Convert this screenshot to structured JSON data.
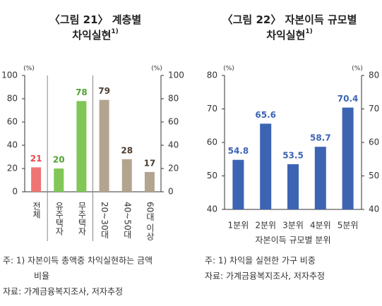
{
  "chart_data": [
    {
      "type": "bar",
      "title": [
        "〈그림 21〉 계층별",
        "차익실현"
      ],
      "title_sup": "1)",
      "categories": [
        "전체",
        "유주택자",
        "무주택자",
        "20~30대",
        "40~50대",
        "60대 이상"
      ],
      "values": [
        21,
        20,
        78,
        79,
        28,
        17
      ],
      "colors": [
        "#f07474",
        "#80c757",
        "#80c757",
        "#b3a48f",
        "#b3a48f",
        "#b3a48f"
      ],
      "label_colors": [
        "#e8474c",
        "#4fa331",
        "#4fa331",
        "#4a3d33",
        "#4a3d33",
        "#4a3d33"
      ],
      "separators_after": [
        0,
        2
      ],
      "ylim": [
        0,
        100
      ],
      "yticks": [
        0,
        20,
        40,
        60,
        80,
        100
      ],
      "y_unit": "(%)",
      "y2lim": [
        0,
        100
      ],
      "y2ticks": [
        0,
        20,
        40,
        60,
        80,
        100
      ],
      "y2_unit": "(%)",
      "notes": [
        "주: 1) 자본이득 총액중 차익실현하는 금액",
        "비율",
        "자료: 가계금융복지조사, 저자추정"
      ]
    },
    {
      "type": "bar",
      "title": [
        "〈그림 22〉 자본이득 규모별",
        "차익실현"
      ],
      "title_sup": "1)",
      "categories": [
        "1분위",
        "2분위",
        "3분위",
        "4분위",
        "5분위"
      ],
      "values": [
        54.8,
        65.6,
        53.5,
        58.7,
        70.4
      ],
      "color": "#3d64b3",
      "label_color": "#3d64b3",
      "xlabel": "자본이득 규모별 분위",
      "ylim": [
        40,
        80
      ],
      "yticks": [
        40,
        50,
        60,
        70,
        80
      ],
      "y_unit": "(%)",
      "y2lim": [
        40,
        80
      ],
      "y2ticks": [
        40,
        50,
        60,
        70,
        80
      ],
      "y2_unit": "(%)",
      "notes": [
        "주: 1) 차익을 실현한 가구 비중",
        "자료: 가계금융복지조사, 저자추정"
      ]
    }
  ]
}
